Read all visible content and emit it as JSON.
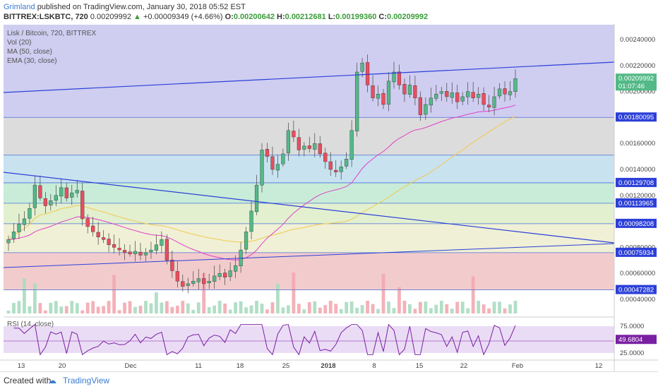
{
  "header": {
    "author": "Grimland",
    "published_text": "published on TradingView.com, January 30, 2018 05:52 EST",
    "symbol": "BITTREX:LSKBTC, 720",
    "last": "0.00209992",
    "change": "+0.00009349 (+4.66%)",
    "o_label": "O:",
    "o": "0.00200642",
    "h_label": "H:",
    "h": "0.00212681",
    "l_label": "L:",
    "l": "0.00199360",
    "c_label": "C:",
    "c": "0.00209992"
  },
  "legend": {
    "title": "Lisk / Bitcoin, 720, BITTREX",
    "vol": "Vol (20)",
    "ma": "MA (50, close)",
    "ema": "EMA (30, close)",
    "rsi": "RSI (14, close)"
  },
  "footer": {
    "created": "Created with",
    "brand": "TradingView"
  },
  "colors": {
    "up": "#53b987",
    "down": "#eb4d5c",
    "ma": "#f2c94c",
    "ema": "#e040c8",
    "trend": "#2c40d8",
    "rsi": "#7a1fa2"
  },
  "chart_data": {
    "type": "candlestick",
    "price_axis_ticks": [
      "0.00240000",
      "0.00220000",
      "0.00200000",
      "0.00160000",
      "0.00140000",
      "0.00120000",
      "0.00080000",
      "0.00060000",
      "0.00040000"
    ],
    "price_tags": [
      {
        "value": "0.00209992",
        "color": "#53b987"
      },
      {
        "value": "01:07:46",
        "color": "#53b987"
      },
      {
        "value": "0.00180095",
        "color": "#2c40d8"
      },
      {
        "value": "0.00129708",
        "color": "#2c40d8"
      },
      {
        "value": "0.00113965",
        "color": "#2c40d8"
      },
      {
        "value": "0.00098208",
        "color": "#2c40d8"
      },
      {
        "value": "0.00075934",
        "color": "#2c40d8"
      },
      {
        "value": "0.00047282",
        "color": "#2c40d8"
      }
    ],
    "fib_levels": [
      0.00180095,
      0.00151,
      0.00129708,
      0.00113965,
      0.00098208,
      0.00075934,
      0.00047282
    ],
    "rsi_ticks": [
      "75.0000",
      "49.6804",
      "25.0000"
    ],
    "rsi_last": 49.6804,
    "x_ticks": [
      "13",
      "20",
      "Dec",
      "11",
      "18",
      "25",
      "2018",
      "8",
      "15",
      "22",
      "Feb",
      "12"
    ],
    "closes": [
      0.00086,
      0.00092,
      0.00098,
      0.00102,
      0.0011,
      0.00128,
      0.00118,
      0.00112,
      0.00116,
      0.0012,
      0.00126,
      0.00118,
      0.00122,
      0.00124,
      0.00102,
      0.00096,
      0.00092,
      0.00088,
      0.00086,
      0.00082,
      0.0008,
      0.00078,
      0.00076,
      0.00075,
      0.00077,
      0.00074,
      0.00076,
      0.00078,
      0.00082,
      0.00086,
      0.0007,
      0.00062,
      0.00054,
      0.0005,
      0.00052,
      0.00054,
      0.00056,
      0.00052,
      0.00054,
      0.00058,
      0.0006,
      0.00057,
      0.00062,
      0.00066,
      0.00078,
      0.00092,
      0.00108,
      0.00128,
      0.00155,
      0.0015,
      0.0014,
      0.00144,
      0.00152,
      0.0017,
      0.00165,
      0.00155,
      0.00158,
      0.00156,
      0.0016,
      0.00152,
      0.00146,
      0.0014,
      0.00138,
      0.00142,
      0.00148,
      0.0017,
      0.00215,
      0.00222,
      0.00205,
      0.00195,
      0.00198,
      0.0019,
      0.00208,
      0.00215,
      0.00205,
      0.00198,
      0.00205,
      0.00195,
      0.00182,
      0.0019,
      0.00195,
      0.00198,
      0.002,
      0.00196,
      0.00199,
      0.00192,
      0.00196,
      0.002,
      0.00195,
      0.00198,
      0.0019,
      0.00188,
      0.00196,
      0.00202,
      0.00198,
      0.002,
      0.00209992
    ],
    "ema30": "derived",
    "ma50": "derived"
  }
}
